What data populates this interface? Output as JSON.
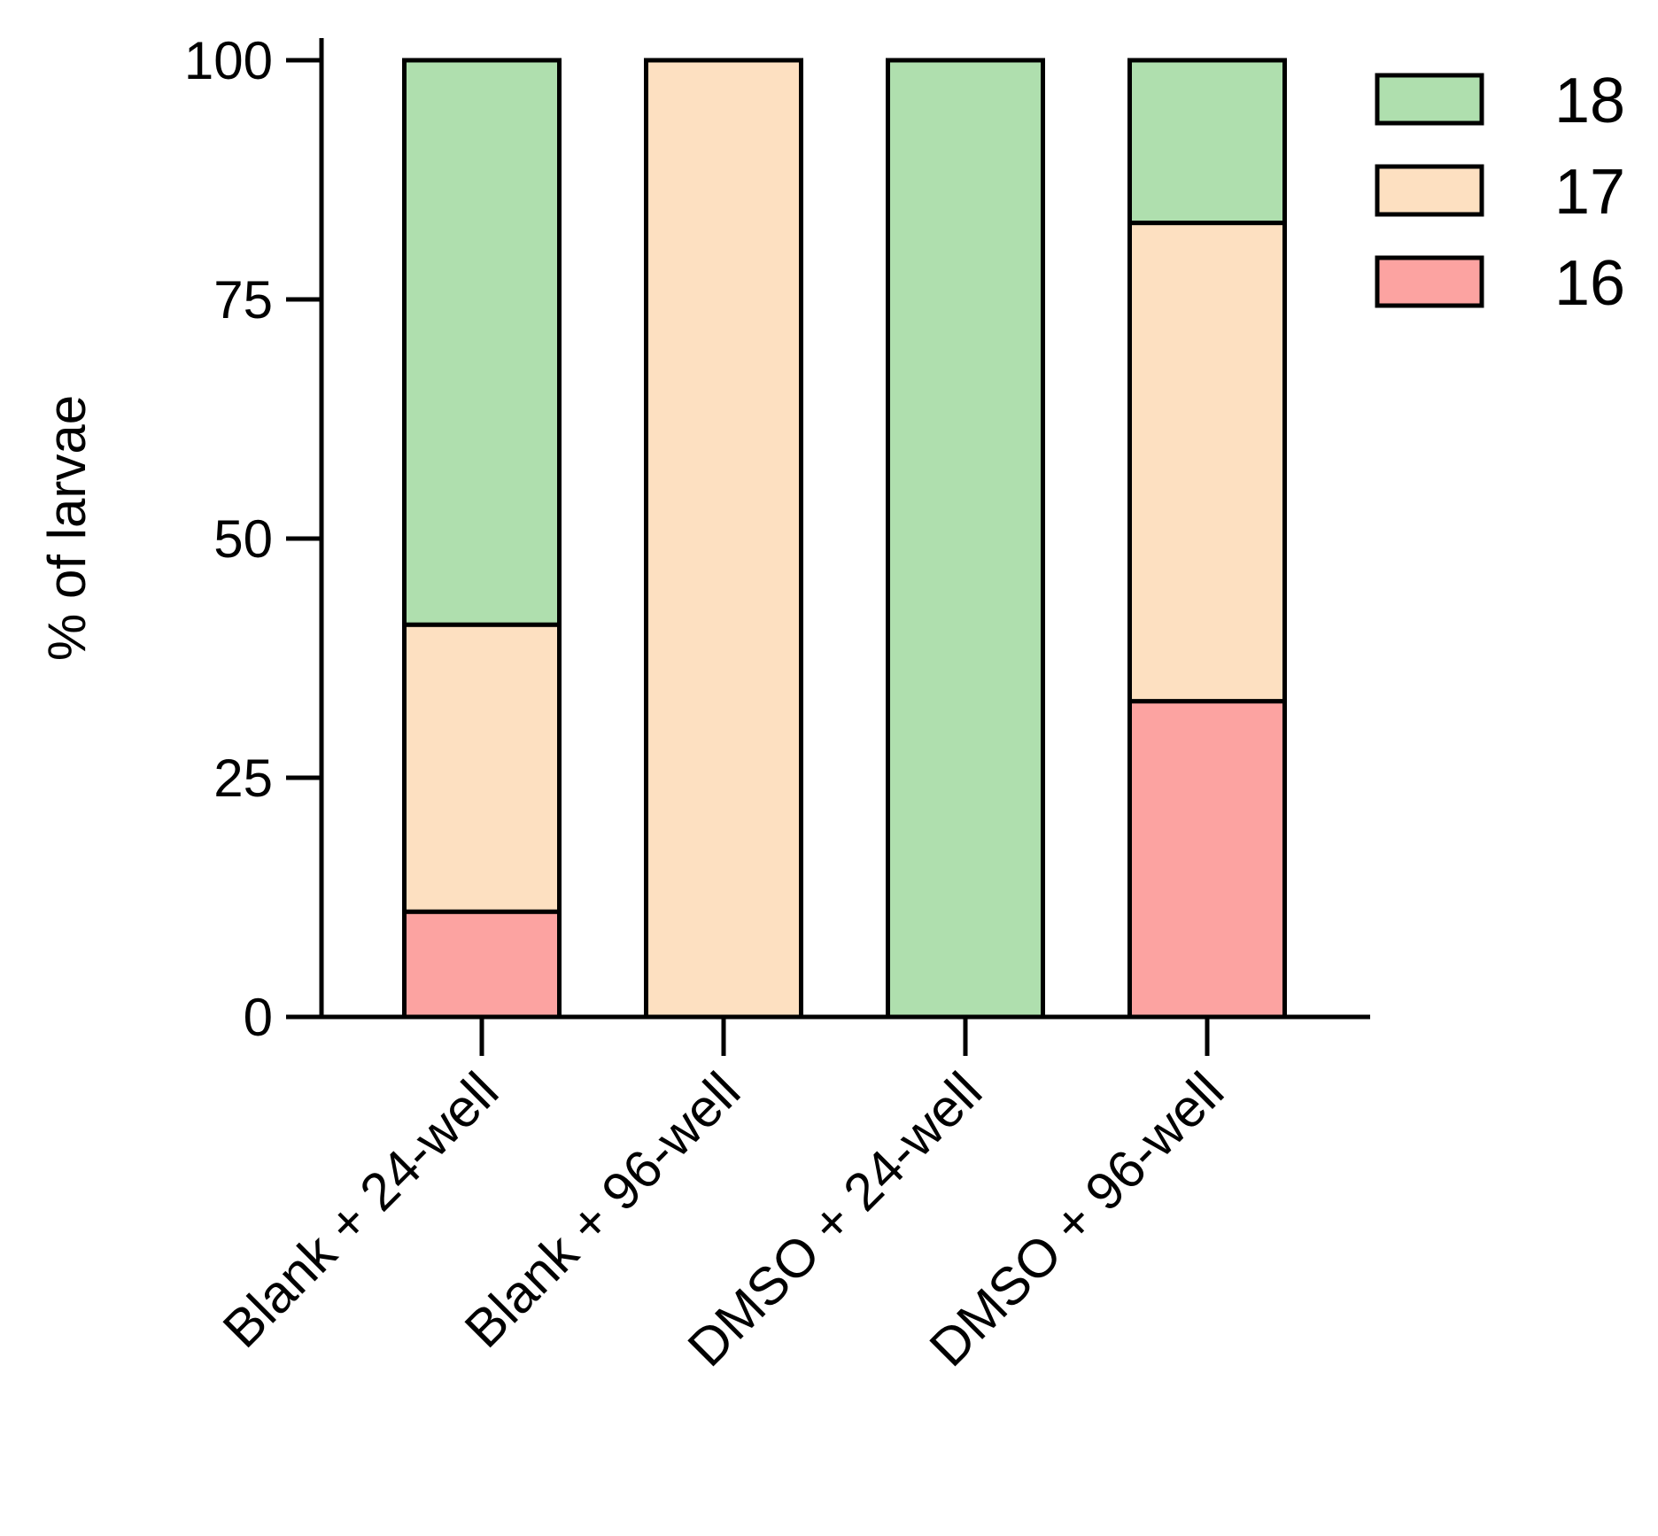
{
  "chart_data": {
    "type": "bar",
    "stacked": true,
    "categories": [
      "Blank + 24-well",
      "Blank + 96-well",
      "DMSO + 24-well",
      "DMSO + 96-well"
    ],
    "series": [
      {
        "name": "16",
        "color": "#fca3a1",
        "values": [
          11,
          0,
          0,
          33
        ]
      },
      {
        "name": "17",
        "color": "#fde0c1",
        "values": [
          30,
          100,
          0,
          50
        ]
      },
      {
        "name": "18",
        "color": "#afdfae",
        "values": [
          59,
          0,
          100,
          17
        ]
      }
    ],
    "legend_order": [
      "18",
      "17",
      "16"
    ],
    "legend_position": "top-right",
    "ylabel": "% of larvae",
    "ylim": [
      0,
      100
    ],
    "yticks": [
      0,
      25,
      50,
      75,
      100
    ],
    "grid": false
  }
}
